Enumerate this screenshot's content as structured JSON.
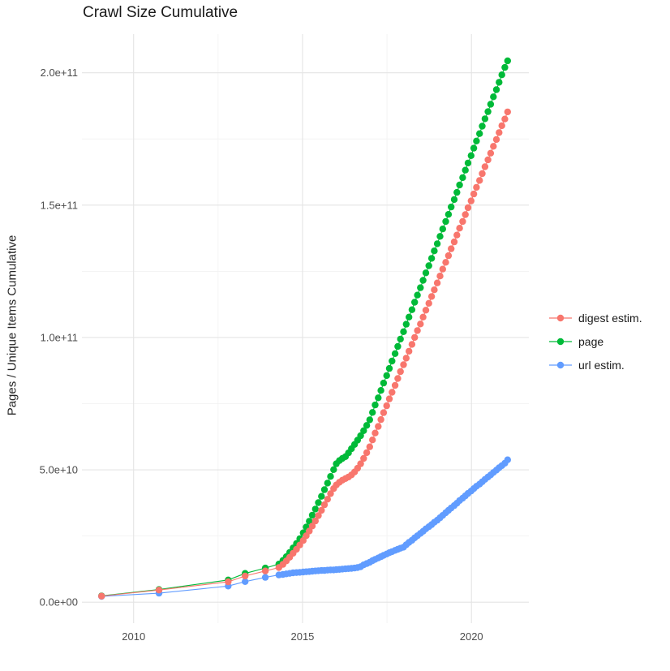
{
  "title": "Crawl Size Cumulative",
  "y_axis_title": "Pages / Unique Items Cumulative",
  "colors": {
    "digest_estim": "#F8766D",
    "page": "#00BA38",
    "url_estim": "#619CFF",
    "grid_major": "#E4E4E4",
    "grid_minor": "#F1F1F1",
    "axis_text": "#4D4D4D",
    "title_text": "#1A1A1A",
    "background": "#FFFFFF"
  },
  "legend": {
    "items": [
      {
        "label": "digest estim.",
        "color": "#F8766D"
      },
      {
        "label": "page",
        "color": "#00BA38"
      },
      {
        "label": "url estim.",
        "color": "#619CFF"
      }
    ]
  },
  "chart_data": {
    "type": "scatter",
    "title": "Crawl Size Cumulative",
    "xlabel": "",
    "ylabel": "Pages / Unique Items Cumulative",
    "value_unit": "billions (1e9) of pages / unique items",
    "x_domain": [
      2008.47,
      2021.7
    ],
    "y_domain_billions": [
      -7.9,
      214.6
    ],
    "x_ticks": [
      {
        "value": 2010,
        "label": "2010"
      },
      {
        "value": 2015,
        "label": "2015"
      },
      {
        "value": 2020,
        "label": "2020"
      }
    ],
    "x_minor": [
      2012.5,
      2017.5
    ],
    "y_ticks": [
      {
        "value_billions": 0,
        "label": "0.0e+00"
      },
      {
        "value_billions": 50,
        "label": "5.0e+10"
      },
      {
        "value_billions": 100,
        "label": "1.0e+11"
      },
      {
        "value_billions": 150,
        "label": "1.5e+11"
      },
      {
        "value_billions": 200,
        "label": "2.0e+11"
      }
    ],
    "y_minor_billions": [
      25,
      75,
      125,
      175
    ],
    "grid": true,
    "legend_position": "right",
    "x": [
      2009.05,
      2010.75,
      2012.8,
      2013.3,
      2013.9,
      2014.3,
      2014.42,
      2014.52,
      2014.62,
      2014.72,
      2014.82,
      2014.92,
      2015.02,
      2015.11,
      2015.2,
      2015.29,
      2015.38,
      2015.47,
      2015.56,
      2015.65,
      2015.74,
      2015.83,
      2015.92,
      2016.0,
      2016.09,
      2016.18,
      2016.27,
      2016.36,
      2016.45,
      2016.54,
      2016.63,
      2016.72,
      2016.81,
      2016.9,
      2016.99,
      2017.07,
      2017.15,
      2017.24,
      2017.32,
      2017.4,
      2017.49,
      2017.57,
      2017.65,
      2017.74,
      2017.82,
      2017.9,
      2017.99,
      2018.07,
      2018.15,
      2018.24,
      2018.32,
      2018.4,
      2018.49,
      2018.57,
      2018.65,
      2018.74,
      2018.82,
      2018.9,
      2018.99,
      2019.07,
      2019.15,
      2019.24,
      2019.32,
      2019.4,
      2019.49,
      2019.57,
      2019.65,
      2019.74,
      2019.82,
      2019.9,
      2019.99,
      2020.07,
      2020.15,
      2020.24,
      2020.32,
      2020.4,
      2020.49,
      2020.57,
      2020.65,
      2020.74,
      2020.82,
      2020.9,
      2020.99,
      2021.07
    ],
    "series": [
      {
        "name": "digest estim.",
        "color": "#F8766D",
        "values_billions": [
          2.3,
          4.6,
          7.7,
          9.9,
          11.8,
          13.1,
          14.3,
          15.6,
          17.0,
          18.5,
          20.0,
          21.6,
          23.3,
          25.1,
          26.9,
          28.8,
          30.7,
          32.7,
          34.7,
          36.8,
          38.9,
          41.0,
          42.9,
          44.3,
          45.3,
          46.1,
          46.7,
          47.3,
          48.1,
          49.2,
          50.6,
          52.3,
          54.3,
          56.5,
          58.7,
          61.3,
          63.9,
          66.4,
          69.0,
          71.6,
          74.2,
          76.8,
          79.3,
          81.9,
          84.5,
          87.1,
          89.7,
          92.2,
          94.8,
          97.4,
          100.0,
          102.6,
          105.1,
          107.7,
          110.3,
          112.9,
          115.5,
          118.0,
          120.6,
          123.2,
          125.8,
          128.4,
          130.9,
          133.5,
          136.1,
          138.7,
          141.3,
          143.8,
          146.4,
          149.0,
          151.6,
          154.2,
          156.7,
          159.3,
          161.9,
          164.5,
          167.1,
          169.6,
          172.2,
          174.8,
          177.4,
          180.0,
          182.5,
          185.2
        ]
      },
      {
        "name": "page",
        "color": "#00BA38",
        "values_billions": [
          2.4,
          4.8,
          8.4,
          10.9,
          12.9,
          14.4,
          15.8,
          17.2,
          18.8,
          20.5,
          22.2,
          24.0,
          26.2,
          28.4,
          30.6,
          32.9,
          35.2,
          37.6,
          40.0,
          42.5,
          45.0,
          47.5,
          50.1,
          52.3,
          53.5,
          54.3,
          55.0,
          56.4,
          58.0,
          59.6,
          61.2,
          62.9,
          64.8,
          66.8,
          68.9,
          71.7,
          74.5,
          77.2,
          80.0,
          82.8,
          85.6,
          88.3,
          91.1,
          93.9,
          96.6,
          99.4,
          102.2,
          105.0,
          107.7,
          110.5,
          113.3,
          116.0,
          118.8,
          121.6,
          124.4,
          127.1,
          129.9,
          132.7,
          135.4,
          138.2,
          141.0,
          143.8,
          146.5,
          149.3,
          152.1,
          154.8,
          157.6,
          160.4,
          163.2,
          165.9,
          168.7,
          171.5,
          174.2,
          177.0,
          179.8,
          182.6,
          185.3,
          188.1,
          190.9,
          193.6,
          196.4,
          199.2,
          202.0,
          204.5
        ]
      },
      {
        "name": "url estim.",
        "color": "#619CFF",
        "values_billions": [
          2.2,
          3.4,
          6.1,
          7.8,
          9.4,
          10.3,
          10.5,
          10.7,
          10.9,
          11.1,
          11.2,
          11.3,
          11.4,
          11.5,
          11.6,
          11.7,
          11.8,
          11.9,
          12.0,
          12.0,
          12.1,
          12.2,
          12.2,
          12.3,
          12.4,
          12.5,
          12.6,
          12.7,
          12.8,
          12.9,
          13.1,
          13.4,
          14.1,
          14.6,
          15.1,
          15.7,
          16.2,
          16.7,
          17.2,
          17.7,
          18.2,
          18.7,
          19.1,
          19.6,
          20.0,
          20.4,
          20.8,
          21.7,
          22.6,
          23.4,
          24.3,
          25.1,
          26.0,
          26.8,
          27.7,
          28.5,
          29.3,
          30.2,
          31.0,
          31.9,
          32.8,
          33.8,
          34.7,
          35.6,
          36.5,
          37.4,
          38.4,
          39.3,
          40.2,
          41.1,
          42.0,
          42.9,
          43.8,
          44.6,
          45.5,
          46.4,
          47.3,
          48.1,
          49.0,
          49.9,
          50.8,
          51.6,
          52.5,
          53.8
        ]
      }
    ]
  }
}
